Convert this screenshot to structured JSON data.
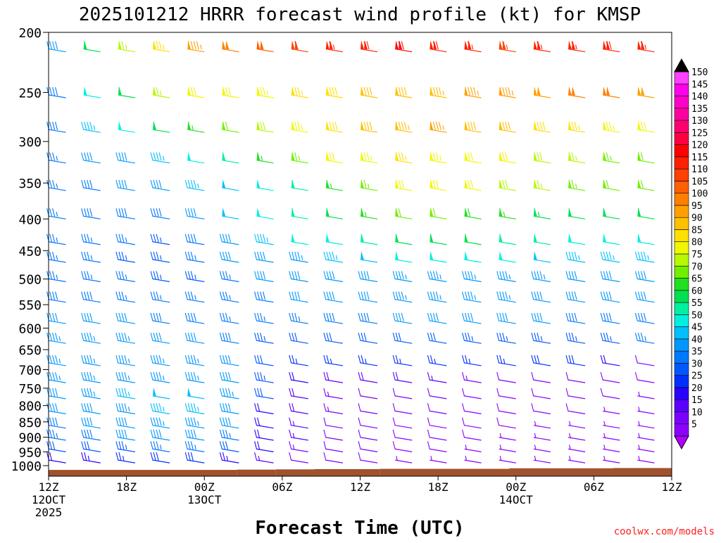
{
  "chart_data": {
    "type": "wind-barb-time-height",
    "title": "2025101212 HRRR forecast wind profile (kt) for KMSP",
    "xlabel": "Forecast Time (UTC)",
    "credit": "coolwx.com/models",
    "units": "kt",
    "y_axis": {
      "quantity": "pressure (hPa)",
      "range": [
        1040,
        200
      ],
      "scale": "log",
      "ticks": [
        200,
        250,
        300,
        350,
        400,
        450,
        500,
        550,
        600,
        650,
        700,
        750,
        800,
        850,
        900,
        950,
        1000
      ]
    },
    "x_axis": {
      "range_hours": [
        0,
        48
      ],
      "ticks": [
        {
          "hour": 0,
          "line1": "12Z",
          "line2": "12OCT",
          "line3": "2025"
        },
        {
          "hour": 6,
          "line1": "18Z",
          "line2": "",
          "line3": ""
        },
        {
          "hour": 12,
          "line1": "00Z",
          "line2": "13OCT",
          "line3": ""
        },
        {
          "hour": 18,
          "line1": "06Z",
          "line2": "",
          "line3": ""
        },
        {
          "hour": 24,
          "line1": "12Z",
          "line2": "",
          "line3": ""
        },
        {
          "hour": 30,
          "line1": "18Z",
          "line2": "",
          "line3": ""
        },
        {
          "hour": 36,
          "line1": "00Z",
          "line2": "14OCT",
          "line3": ""
        },
        {
          "hour": 42,
          "line1": "06Z",
          "line2": "",
          "line3": ""
        },
        {
          "hour": 48,
          "line1": "12Z",
          "line2": "",
          "line3": ""
        }
      ]
    },
    "colorbar": {
      "levels": [
        5,
        10,
        15,
        20,
        25,
        30,
        35,
        40,
        45,
        50,
        55,
        60,
        65,
        70,
        75,
        80,
        85,
        90,
        95,
        100,
        105,
        110,
        115,
        120,
        125,
        130,
        135,
        140,
        145,
        150
      ],
      "colors": [
        "#8c00ff",
        "#7a00ff",
        "#5a00ff",
        "#2a00ff",
        "#0030ff",
        "#0058ff",
        "#0078ff",
        "#0098ff",
        "#00c0ff",
        "#00f0e0",
        "#00f0a0",
        "#00e050",
        "#20e020",
        "#70f000",
        "#b8f800",
        "#f0f800",
        "#ffe000",
        "#ffc000",
        "#ffa000",
        "#ff8000",
        "#ff6000",
        "#ff4000",
        "#ff2000",
        "#ff0000",
        "#ff0040",
        "#ff0070",
        "#ff00a0",
        "#ff00c8",
        "#ff00e8",
        "#ff40ff"
      ],
      "under_color": "#b000ff",
      "over_color": "#000000"
    },
    "surface_pressure_hpa": [
      {
        "hour_start": 0,
        "hour_end": 14.5,
        "p": 1016
      },
      {
        "hour_start": 14.5,
        "hour_end": 17.5,
        "p": 1015
      },
      {
        "hour_start": 17.5,
        "hour_end": 20.5,
        "p": 1014
      },
      {
        "hour_start": 20.5,
        "hour_end": 25.5,
        "p": 1013
      },
      {
        "hour_start": 25.5,
        "hour_end": 35.5,
        "p": 1012
      },
      {
        "hour_start": 35.5,
        "hour_end": 43.5,
        "p": 1010
      },
      {
        "hour_start": 43.5,
        "hour_end": 48,
        "p": 1009
      }
    ],
    "surface_color": "#a0522d",
    "series": [
      {
        "level": 215,
        "speed": [
          42,
          60,
          75,
          85,
          95,
          100,
          105,
          110,
          115,
          118,
          120,
          118,
          116,
          114,
          115,
          117,
          118,
          116
        ]
      },
      {
        "level": 255,
        "speed": [
          38,
          50,
          62,
          75,
          80,
          82,
          84,
          86,
          88,
          90,
          92,
          94,
          96,
          97,
          98,
          100,
          100,
          98
        ]
      },
      {
        "level": 290,
        "speed": [
          38,
          45,
          52,
          60,
          66,
          72,
          78,
          84,
          88,
          92,
          94,
          95,
          92,
          90,
          88,
          86,
          84,
          82
        ]
      },
      {
        "level": 325,
        "speed": [
          36,
          40,
          42,
          45,
          52,
          58,
          66,
          74,
          80,
          84,
          86,
          84,
          82,
          80,
          78,
          76,
          74,
          72
        ]
      },
      {
        "level": 360,
        "speed": [
          36,
          38,
          40,
          42,
          45,
          48,
          52,
          58,
          66,
          74,
          80,
          82,
          80,
          78,
          76,
          74,
          72,
          70
        ]
      },
      {
        "level": 400,
        "speed": [
          36,
          38,
          38,
          38,
          42,
          48,
          52,
          58,
          62,
          66,
          70,
          70,
          68,
          66,
          64,
          62,
          60,
          60
        ]
      },
      {
        "level": 440,
        "speed": [
          36,
          36,
          36,
          34,
          38,
          42,
          46,
          50,
          54,
          58,
          60,
          60,
          60,
          58,
          56,
          54,
          52,
          52
        ]
      },
      {
        "level": 470,
        "speed": [
          36,
          36,
          34,
          34,
          36,
          40,
          42,
          44,
          46,
          48,
          50,
          50,
          50,
          50,
          48,
          46,
          46,
          46
        ]
      },
      {
        "level": 505,
        "speed": [
          36,
          36,
          36,
          34,
          34,
          36,
          40,
          40,
          42,
          42,
          44,
          44,
          44,
          44,
          44,
          42,
          42,
          42
        ]
      },
      {
        "level": 545,
        "speed": [
          38,
          38,
          36,
          36,
          36,
          36,
          38,
          40,
          42,
          42,
          44,
          44,
          44,
          44,
          42,
          42,
          42,
          40
        ]
      },
      {
        "level": 590,
        "speed": [
          40,
          40,
          40,
          38,
          38,
          36,
          36,
          36,
          38,
          38,
          40,
          40,
          40,
          40,
          40,
          38,
          38,
          38
        ]
      },
      {
        "level": 635,
        "speed": [
          44,
          44,
          44,
          42,
          42,
          38,
          34,
          32,
          32,
          32,
          32,
          32,
          34,
          34,
          34,
          34,
          34,
          36
        ]
      },
      {
        "level": 690,
        "speed": [
          44,
          44,
          44,
          44,
          44,
          40,
          32,
          26,
          26,
          26,
          26,
          26,
          26,
          26,
          28,
          28,
          20,
          12
        ]
      },
      {
        "level": 735,
        "speed": [
          44,
          44,
          44,
          44,
          44,
          40,
          34,
          22,
          18,
          18,
          18,
          16,
          14,
          12,
          12,
          10,
          8,
          8
        ]
      },
      {
        "level": 780,
        "speed": [
          42,
          44,
          46,
          48,
          48,
          44,
          30,
          18,
          14,
          12,
          10,
          10,
          8,
          8,
          8,
          8,
          8,
          6
        ]
      },
      {
        "level": 825,
        "speed": [
          40,
          42,
          44,
          46,
          46,
          42,
          22,
          18,
          14,
          12,
          10,
          10,
          8,
          8,
          8,
          8,
          6,
          6
        ]
      },
      {
        "level": 870,
        "speed": [
          38,
          40,
          42,
          44,
          44,
          40,
          22,
          16,
          12,
          10,
          8,
          8,
          8,
          8,
          6,
          6,
          6,
          6
        ]
      },
      {
        "level": 910,
        "speed": [
          36,
          38,
          40,
          40,
          40,
          36,
          22,
          16,
          12,
          10,
          8,
          8,
          8,
          6,
          6,
          6,
          6,
          6
        ]
      },
      {
        "level": 950,
        "speed": [
          30,
          32,
          34,
          36,
          36,
          30,
          20,
          14,
          12,
          10,
          8,
          8,
          6,
          6,
          6,
          6,
          6,
          6
        ]
      },
      {
        "level": 990,
        "speed": [
          20,
          24,
          26,
          28,
          28,
          24,
          16,
          12,
          10,
          8,
          6,
          6,
          6,
          6,
          6,
          6,
          6,
          6
        ]
      }
    ]
  }
}
